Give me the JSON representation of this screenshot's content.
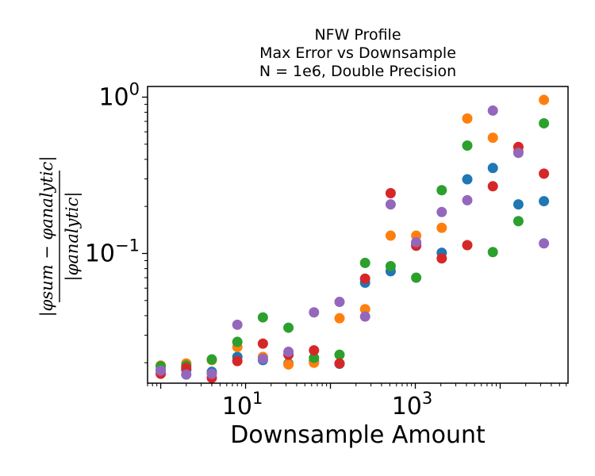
{
  "chart_data": {
    "type": "scatter",
    "title": [
      "NFW Profile",
      "Max Error vs Downsample",
      "N = 1e6, Double Precision"
    ],
    "xlabel": "Downsample Amount",
    "ylabel_numerator": "|φsum − φanalytic|",
    "ylabel_denominator": "|φanalytic|",
    "xscale": "log",
    "yscale": "log",
    "xlim": [
      0.7,
      63000
    ],
    "ylim": [
      0.0148,
      1.17
    ],
    "grid": false,
    "legend": "none",
    "xticks": [
      {
        "base": "10",
        "exp": "1",
        "value": 10
      },
      {
        "base": "10",
        "exp": "3",
        "value": 1000
      }
    ],
    "yticks": [
      {
        "base": "10",
        "exp": "−1",
        "value": 0.1
      },
      {
        "base": "10",
        "exp": "0",
        "value": 1
      }
    ],
    "x": [
      1,
      2,
      4,
      8,
      16,
      32,
      64,
      128,
      256,
      512,
      1024,
      2048,
      4096,
      8192,
      16384,
      32768
    ],
    "series": [
      {
        "color": "#1f77b4",
        "values": [
          0.018,
          0.018,
          0.0175,
          0.0218,
          0.0208,
          0.0198,
          0.0205,
          0.0197,
          0.065,
          0.077,
          0.116,
          0.101,
          0.298,
          0.352,
          0.206,
          0.216
        ]
      },
      {
        "color": "#ff7f0e",
        "values": [
          0.0192,
          0.0198,
          0.0208,
          0.0252,
          0.0218,
          0.0195,
          0.02,
          0.0385,
          0.044,
          0.13,
          0.13,
          0.146,
          0.73,
          0.55,
          0.45,
          0.96
        ]
      },
      {
        "color": "#2ca02c",
        "values": [
          0.019,
          0.0192,
          0.021,
          0.0272,
          0.039,
          0.0335,
          0.0215,
          0.0225,
          0.087,
          0.083,
          0.07,
          0.254,
          0.49,
          0.102,
          0.161,
          0.68
        ]
      },
      {
        "color": "#d62728",
        "values": [
          0.017,
          0.0185,
          0.016,
          0.0205,
          0.0265,
          0.0225,
          0.024,
          0.0198,
          0.069,
          0.243,
          0.112,
          0.093,
          0.113,
          0.269,
          0.48,
          0.324
        ]
      },
      {
        "color": "#9467bd",
        "values": [
          0.0178,
          0.0168,
          0.017,
          0.035,
          0.0212,
          0.0235,
          0.042,
          0.049,
          0.0395,
          0.206,
          0.118,
          0.184,
          0.219,
          0.82,
          0.44,
          0.116
        ]
      }
    ]
  }
}
